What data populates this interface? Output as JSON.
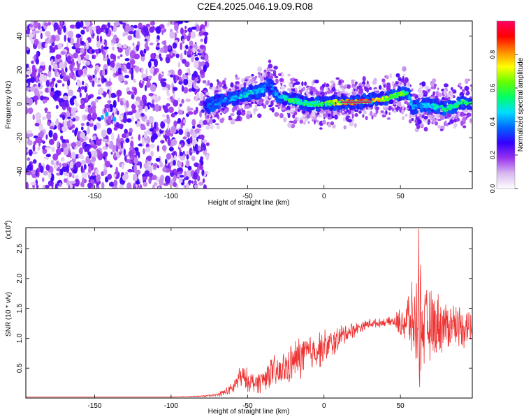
{
  "title": "C2E4.2025.046.19.09.R08",
  "chart_data": [
    {
      "type": "heatmap",
      "xlabel": "Height of straight line (km)",
      "ylabel": "Frequency (Hz)",
      "xlim": [
        -195,
        97
      ],
      "ylim": [
        -50,
        49
      ],
      "xticks": [
        -150,
        -100,
        -50,
        0,
        50
      ],
      "yticks": [
        -40,
        -20,
        0,
        20,
        40
      ],
      "colorbar": {
        "label": "Normalized spectral amplitude",
        "range": [
          0,
          1
        ],
        "ticks": [
          "0.0",
          "0.2",
          "0.4",
          "0.6",
          "0.8"
        ],
        "colors": [
          "#ffffff",
          "#d8b8f0",
          "#9933ee",
          "#3300ff",
          "#0066ff",
          "#00ddff",
          "#00ff66",
          "#66ff00",
          "#ffff00",
          "#ff8800",
          "#ff0000",
          "#ff0066"
        ]
      },
      "noise_region_x": [
        -195,
        -78
      ],
      "ridge": {
        "x": [
          -78,
          -70,
          -60,
          -50,
          -40,
          -36,
          -30,
          -20,
          -10,
          0,
          10,
          20,
          30,
          40,
          50,
          55,
          58,
          62,
          70,
          80,
          90,
          97
        ],
        "y": [
          -2,
          1,
          3,
          6,
          8,
          12,
          5,
          2,
          0,
          0,
          1,
          1,
          2,
          3,
          6,
          7,
          -2,
          -1,
          -1,
          -3,
          1,
          0
        ],
        "amplitude": [
          0.35,
          0.4,
          0.45,
          0.5,
          0.45,
          0.35,
          0.5,
          0.6,
          0.55,
          0.6,
          0.8,
          0.95,
          0.95,
          0.75,
          0.65,
          0.6,
          0.45,
          0.45,
          0.5,
          0.55,
          0.6,
          0.55
        ]
      }
    },
    {
      "type": "line",
      "xlabel": "Height of straight line (km)",
      "ylabel": "SNR (10 * v/v)",
      "y_multiplier": "(x10",
      "y_multiplier_exp": "4",
      "y_multiplier_close": ")",
      "xlim": [
        -195,
        97
      ],
      "ylim": [
        0,
        2.85
      ],
      "xticks": [
        -150,
        -100,
        -50,
        0,
        50
      ],
      "yticks": [
        0.5,
        1.0,
        1.5,
        2.0,
        2.5
      ],
      "color": "#ee3333",
      "series": [
        {
          "x": [
            -195,
            -150,
            -100,
            -80,
            -70,
            -60,
            -55,
            -50,
            -45,
            -40,
            -35,
            -30,
            -25,
            -20,
            -15,
            -10,
            -5,
            0,
            5,
            10,
            15,
            20,
            25,
            30,
            35,
            40,
            45,
            50,
            55,
            60,
            62,
            65,
            70,
            75,
            80,
            85,
            90,
            97
          ],
          "y": [
            0.02,
            0.02,
            0.02,
            0.03,
            0.05,
            0.15,
            0.35,
            0.3,
            0.25,
            0.3,
            0.45,
            0.4,
            0.5,
            0.6,
            0.7,
            0.75,
            0.8,
            0.85,
            0.9,
            1.0,
            1.1,
            1.15,
            1.2,
            1.25,
            1.25,
            1.27,
            1.28,
            1.25,
            1.3,
            1.25,
            1.3,
            1.2,
            1.2,
            1.25,
            1.2,
            1.25,
            1.2,
            1.2
          ],
          "spread": [
            0,
            0,
            0,
            0.01,
            0.03,
            0.12,
            0.25,
            0.22,
            0.2,
            0.25,
            0.3,
            0.35,
            0.35,
            0.4,
            0.45,
            0.4,
            0.35,
            0.35,
            0.3,
            0.25,
            0.2,
            0.15,
            0.1,
            0.1,
            0.08,
            0.08,
            0.1,
            0.3,
            0.6,
            0.8,
            1.4,
            0.8,
            0.7,
            0.6,
            0.5,
            0.45,
            0.4,
            0.4
          ]
        }
      ]
    }
  ]
}
